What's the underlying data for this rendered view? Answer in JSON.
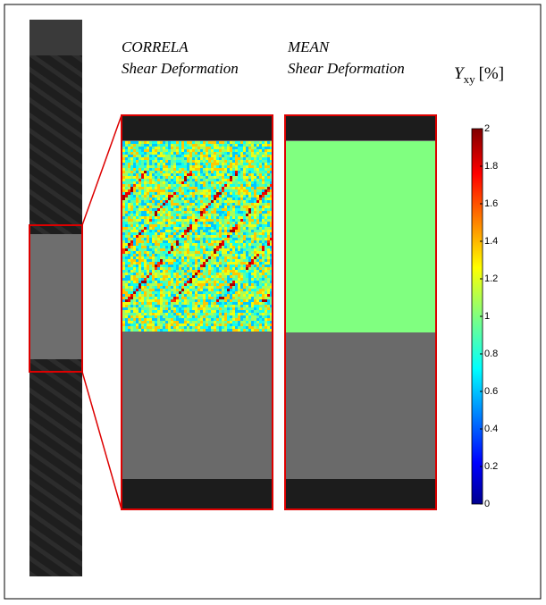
{
  "panels": [
    {
      "title": "CORRELA",
      "subtitle": "Shear Deformation"
    },
    {
      "title": "MEAN",
      "subtitle": "Shear Deformation"
    }
  ],
  "colorbar": {
    "symbol": "Υ",
    "subscript": "xy",
    "unit": "[%]",
    "lim": [
      0,
      2
    ],
    "ticks": [
      0,
      0.2,
      0.4,
      0.6,
      0.8,
      1,
      1.2,
      1.4,
      1.6,
      1.8,
      2
    ]
  }
}
